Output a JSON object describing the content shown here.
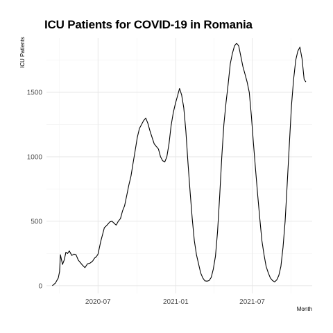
{
  "chart_data": {
    "type": "line",
    "title": "ICU Patients for COVID-19 in Romania",
    "xlabel": "Month",
    "ylabel": "ICU Patients",
    "x_tick_labels": [
      "2020-07",
      "2021-01",
      "2021-07"
    ],
    "y_ticks": [
      0,
      500,
      1000,
      1500
    ],
    "xlim": [
      "2020-03-01",
      "2021-11-20"
    ],
    "ylim": [
      -60,
      1920
    ],
    "grid": true,
    "line_color": "#000000",
    "series": [
      {
        "x": [
          "2020-03-15",
          "2020-03-22",
          "2020-03-29",
          "2020-04-01",
          "2020-04-03",
          "2020-04-08",
          "2020-04-12",
          "2020-04-16",
          "2020-04-20",
          "2020-04-24",
          "2020-04-30",
          "2020-05-05",
          "2020-05-10",
          "2020-05-15",
          "2020-05-20",
          "2020-05-25",
          "2020-05-31",
          "2020-06-06",
          "2020-06-12",
          "2020-06-18",
          "2020-06-23",
          "2020-06-27",
          "2020-07-01",
          "2020-07-04",
          "2020-07-08",
          "2020-07-12",
          "2020-07-16",
          "2020-07-21",
          "2020-07-25",
          "2020-07-29",
          "2020-08-03",
          "2020-08-08",
          "2020-08-13",
          "2020-08-18",
          "2020-08-23",
          "2020-08-28",
          "2020-09-02",
          "2020-09-07",
          "2020-09-12",
          "2020-09-17",
          "2020-09-22",
          "2020-09-27",
          "2020-10-02",
          "2020-10-07",
          "2020-10-12",
          "2020-10-17",
          "2020-10-22",
          "2020-10-27",
          "2020-11-01",
          "2020-11-06",
          "2020-11-11",
          "2020-11-16",
          "2020-11-21",
          "2020-11-26",
          "2020-12-01",
          "2020-12-06",
          "2020-12-11",
          "2020-12-16",
          "2020-12-21",
          "2020-12-26",
          "2020-12-31",
          "2021-01-05",
          "2021-01-10",
          "2021-01-15",
          "2021-01-20",
          "2021-01-25",
          "2021-01-30",
          "2021-02-04",
          "2021-02-09",
          "2021-02-14",
          "2021-02-19",
          "2021-02-24",
          "2021-03-01",
          "2021-03-06",
          "2021-03-11",
          "2021-03-16",
          "2021-03-21",
          "2021-03-26",
          "2021-03-31",
          "2021-04-05",
          "2021-04-10",
          "2021-04-15",
          "2021-04-20",
          "2021-04-25",
          "2021-04-30",
          "2021-05-05",
          "2021-05-10",
          "2021-05-15",
          "2021-05-20",
          "2021-05-25",
          "2021-05-30",
          "2021-06-04",
          "2021-06-09",
          "2021-06-14",
          "2021-06-19",
          "2021-06-24",
          "2021-06-29",
          "2021-07-04",
          "2021-07-09",
          "2021-07-14",
          "2021-07-19",
          "2021-07-24",
          "2021-07-29",
          "2021-08-03",
          "2021-08-08",
          "2021-08-13",
          "2021-08-18",
          "2021-08-23",
          "2021-08-28",
          "2021-09-02",
          "2021-09-07",
          "2021-09-12",
          "2021-09-17",
          "2021-09-22",
          "2021-09-27",
          "2021-10-02",
          "2021-10-07",
          "2021-10-12",
          "2021-10-17",
          "2021-10-22",
          "2021-10-27",
          "2021-11-01",
          "2021-11-05"
        ],
        "values": [
          0,
          20,
          60,
          110,
          240,
          165,
          200,
          260,
          250,
          270,
          235,
          245,
          240,
          200,
          180,
          160,
          140,
          170,
          175,
          190,
          215,
          225,
          245,
          290,
          350,
          400,
          450,
          465,
          480,
          495,
          500,
          485,
          470,
          500,
          520,
          580,
          620,
          700,
          780,
          850,
          950,
          1050,
          1150,
          1220,
          1250,
          1280,
          1300,
          1260,
          1200,
          1150,
          1100,
          1080,
          1060,
          1000,
          970,
          960,
          1000,
          1100,
          1240,
          1340,
          1410,
          1470,
          1530,
          1480,
          1380,
          1200,
          950,
          730,
          520,
          350,
          240,
          170,
          100,
          60,
          38,
          35,
          40,
          65,
          130,
          230,
          420,
          700,
          1000,
          1250,
          1420,
          1560,
          1720,
          1800,
          1860,
          1880,
          1860,
          1780,
          1700,
          1640,
          1580,
          1500,
          1320,
          1100,
          900,
          700,
          520,
          350,
          240,
          150,
          100,
          60,
          40,
          30,
          45,
          80,
          150,
          300,
          500,
          800,
          1100,
          1400,
          1600,
          1750,
          1820,
          1850,
          1760,
          1600,
          1580
        ]
      }
    ]
  }
}
